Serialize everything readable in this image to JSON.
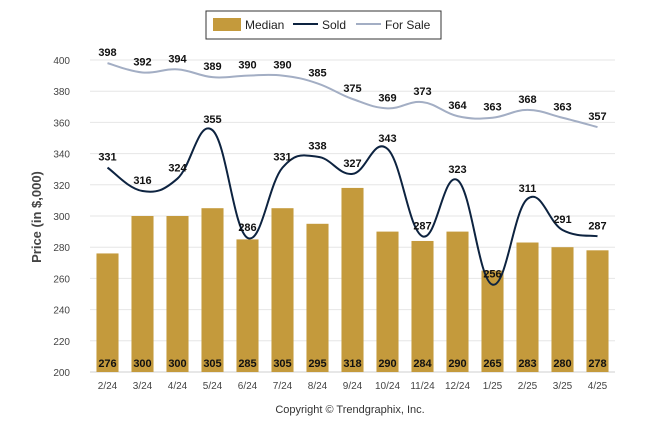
{
  "chart_data": {
    "type": "bar",
    "title": "",
    "xlabel": "",
    "ylabel": "Price (in $,000)",
    "ylim": [
      200,
      400
    ],
    "yticks": [
      200,
      220,
      240,
      260,
      280,
      300,
      320,
      340,
      360,
      380,
      400
    ],
    "grid": true,
    "legend_position": "top-center",
    "categories": [
      "2/24",
      "3/24",
      "4/24",
      "5/24",
      "6/24",
      "7/24",
      "8/24",
      "9/24",
      "10/24",
      "11/24",
      "12/24",
      "1/25",
      "2/25",
      "3/25",
      "4/25"
    ],
    "series": [
      {
        "name": "Median",
        "type": "bar",
        "color": "#c49a3c",
        "values": [
          276,
          300,
          300,
          305,
          285,
          305,
          295,
          318,
          290,
          284,
          290,
          265,
          283,
          280,
          278
        ]
      },
      {
        "name": "Sold",
        "type": "line",
        "color": "#0d2340",
        "values": [
          331,
          316,
          324,
          355,
          286,
          331,
          338,
          327,
          343,
          287,
          323,
          256,
          311,
          291,
          287
        ]
      },
      {
        "name": "For Sale",
        "type": "line",
        "color": "#a3aec4",
        "values": [
          398,
          392,
          394,
          389,
          390,
          390,
          385,
          375,
          369,
          373,
          364,
          363,
          368,
          363,
          357
        ]
      }
    ],
    "footer": "Copyright © Trendgraphix, Inc."
  }
}
